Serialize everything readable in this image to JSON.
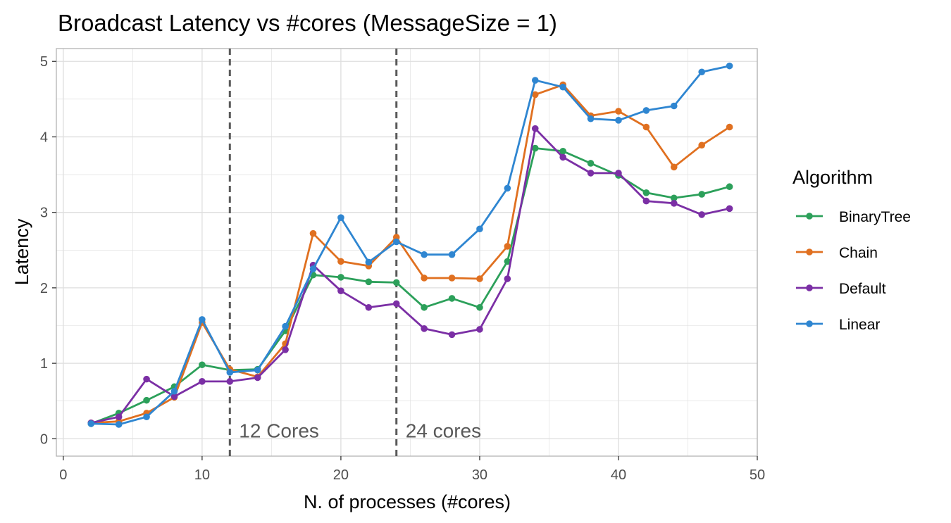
{
  "chart_data": {
    "type": "line",
    "title": "Broadcast Latency vs #cores (MessageSize = 1)",
    "xlabel": "N. of processes (#cores)",
    "ylabel": "Latency",
    "xlim": [
      -0.5,
      50
    ],
    "ylim": [
      -0.23,
      5.17
    ],
    "xticks": [
      0,
      10,
      20,
      30,
      40,
      50
    ],
    "yticks": [
      0,
      1,
      2,
      3,
      4,
      5
    ],
    "grid": true,
    "legend": {
      "title": "Algorithm",
      "position": "right"
    },
    "x": [
      2,
      4,
      6,
      8,
      10,
      12,
      14,
      16,
      18,
      20,
      22,
      24,
      26,
      28,
      30,
      32,
      34,
      36,
      38,
      40,
      42,
      44,
      46,
      48
    ],
    "series": [
      {
        "name": "BinaryTree",
        "color": "#2ca05a",
        "values": [
          0.2,
          0.34,
          0.51,
          0.69,
          0.98,
          0.91,
          0.92,
          1.43,
          2.17,
          2.14,
          2.08,
          2.07,
          1.74,
          1.86,
          1.74,
          2.35,
          3.85,
          3.81,
          3.65,
          3.49,
          3.26,
          3.19,
          3.24,
          3.34
        ]
      },
      {
        "name": "Chain",
        "color": "#e07020",
        "values": [
          0.21,
          0.23,
          0.34,
          0.55,
          1.54,
          0.92,
          0.82,
          1.26,
          2.72,
          2.35,
          2.29,
          2.67,
          2.13,
          2.13,
          2.12,
          2.55,
          4.56,
          4.69,
          4.28,
          4.34,
          4.13,
          3.6,
          3.89,
          4.13
        ]
      },
      {
        "name": "Default",
        "color": "#7b2fa5",
        "values": [
          0.21,
          0.29,
          0.79,
          0.56,
          0.76,
          0.76,
          0.81,
          1.18,
          2.3,
          1.96,
          1.74,
          1.79,
          1.46,
          1.38,
          1.45,
          2.12,
          4.11,
          3.73,
          3.52,
          3.52,
          3.15,
          3.12,
          2.97,
          3.05
        ]
      },
      {
        "name": "Linear",
        "color": "#2f86d1",
        "values": [
          0.2,
          0.19,
          0.29,
          0.63,
          1.58,
          0.88,
          0.91,
          1.49,
          2.25,
          2.93,
          2.34,
          2.61,
          2.44,
          2.44,
          2.78,
          3.32,
          4.75,
          4.66,
          4.24,
          4.22,
          4.35,
          4.41,
          4.86,
          4.94
        ]
      }
    ],
    "annotations": [
      {
        "x": 12,
        "label": "12 Cores"
      },
      {
        "x": 24,
        "label": "24 cores"
      }
    ],
    "colors": {
      "grid": "#dedede",
      "panel_border": "#b3b3b3",
      "vline": "#595959"
    }
  }
}
